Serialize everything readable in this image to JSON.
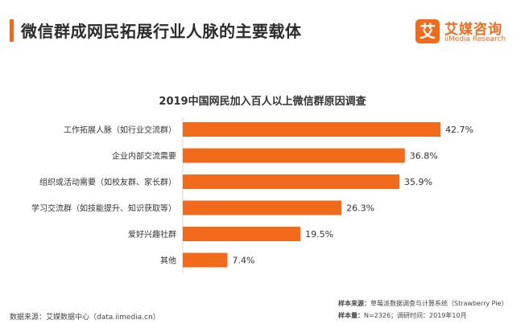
{
  "header": {
    "title": "微信群成网民拓展行业人脉的主要载体"
  },
  "logo": {
    "cn": "艾媒咨询",
    "en": "iiMedia Research",
    "mark": "艾"
  },
  "chart_data": {
    "type": "bar",
    "orientation": "horizontal",
    "title": "2019中国网民加入百人以上微信群原因调查",
    "xlabel": "",
    "ylabel": "",
    "unit": "%",
    "xlim": [
      0,
      45
    ],
    "grid": false,
    "bar_color": "#f26b1d",
    "categories": [
      "工作拓展人脉（如行业交流群）",
      "企业内部交流需要",
      "组织或活动需要（如校友群、家长群）",
      "学习交流群（如技能提升、知识获取等）",
      "爱好兴趣社群",
      "其他"
    ],
    "values": [
      42.7,
      36.8,
      35.9,
      26.3,
      19.5,
      7.4
    ],
    "labels": [
      "42.7%",
      "36.8%",
      "35.9%",
      "26.3%",
      "19.5%",
      "7.4%"
    ]
  },
  "footer": {
    "source": "数据来源：艾媒数据中心（data.iimedia.cn）",
    "sample_source_label": "样本来源：",
    "sample_source_value": "草莓派数据调查与计算系统（Strawberry Pie）",
    "sample_size_label": "样本量：",
    "sample_size_value": "N=2326；调研时间：2019年10月"
  }
}
